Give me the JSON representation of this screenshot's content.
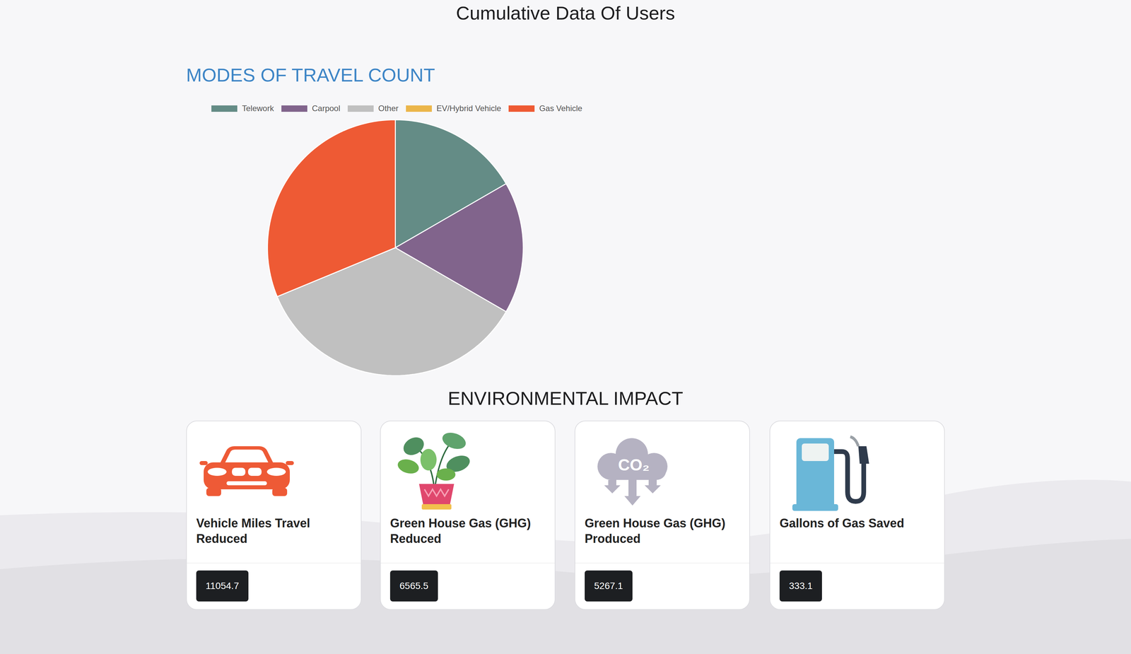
{
  "page": {
    "title": "Cumulative Data Of Users"
  },
  "chart_data": {
    "type": "pie",
    "title": "MODES OF TRAVEL COUNT",
    "categories": [
      "Telework",
      "Carpool",
      "Other",
      "EV/Hybrid Vehicle",
      "Gas Vehicle"
    ],
    "values": [
      8,
      8,
      17,
      0,
      15
    ],
    "colors": [
      "#648c86",
      "#81648c",
      "#c0c0c0",
      "#ebb64b",
      "#ee5a34"
    ],
    "legend": "top"
  },
  "impact": {
    "title": "ENVIRONMENTAL IMPACT",
    "cards": [
      {
        "label": "Vehicle Miles Travel Reduced",
        "value": 11054.7
      },
      {
        "label": "Green House Gas (GHG) Reduced",
        "value": 6565.5
      },
      {
        "label": "Green House Gas (GHG) Produced",
        "value": 5267.1,
        "icon_text": "CO₂"
      },
      {
        "label": "Gallons of Gas Saved",
        "value": 333.1
      }
    ]
  }
}
